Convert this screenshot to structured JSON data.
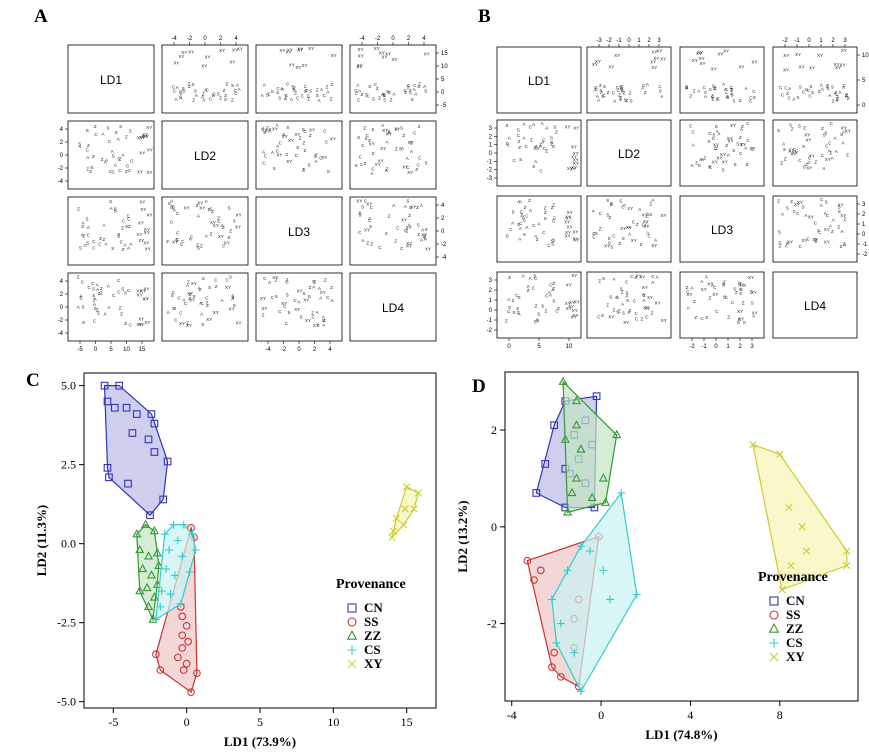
{
  "figure": {
    "panel_letters": [
      "A",
      "B",
      "C",
      "D"
    ]
  },
  "chart_data": [
    {
      "panel": "A",
      "type": "scatter",
      "subtype": "pairs-matrix",
      "variables": [
        "LD1",
        "LD2",
        "LD3",
        "LD4"
      ],
      "axis_ticks": {
        "LD1": [
          "-5",
          "0",
          "5",
          "10",
          "15"
        ],
        "LD2": [
          "-4",
          "-2",
          "0",
          "2",
          "4"
        ],
        "LD3": [
          "-4",
          "-2",
          "0",
          "2",
          "4"
        ],
        "LD4": [
          "-4",
          "-2",
          "0",
          "2",
          "4"
        ]
      },
      "axis_ranges": {
        "LD1": [
          -6.5,
          16.5
        ],
        "LD2": [
          -5,
          5.2
        ],
        "LD3": [
          -5,
          5
        ],
        "LD4": [
          -5,
          5
        ]
      },
      "point_symbols": [
        "C",
        "S",
        "Z",
        "A",
        "XY"
      ],
      "grid": false
    },
    {
      "panel": "B",
      "type": "scatter",
      "subtype": "pairs-matrix",
      "variables": [
        "LD1",
        "LD2",
        "LD3",
        "LD4"
      ],
      "axis_ticks": {
        "LD1": [
          "0",
          "5",
          "10"
        ],
        "LD2": [
          "-3",
          "-2",
          "-1",
          "0",
          "1",
          "2",
          "3"
        ],
        "LD3": [
          "-2",
          "-1",
          "0",
          "1",
          "2",
          "3"
        ],
        "LD4": [
          "-2",
          "-1",
          "0",
          "1",
          "2",
          "3"
        ]
      },
      "axis_ranges": {
        "LD1": [
          -3.5,
          11.5
        ],
        "LD2": [
          -3.5,
          3.5
        ],
        "LD3": [
          -3,
          3.5
        ],
        "LD4": [
          -2.5,
          3.5
        ]
      },
      "point_symbols": [
        "C",
        "S",
        "Z",
        "A",
        "XY"
      ],
      "grid": false
    },
    {
      "panel": "C",
      "type": "scatter",
      "xlabel": "LD1 (73.9%)",
      "ylabel": "LD2 (11.3%)",
      "xlim": [
        -7,
        17
      ],
      "ylim": [
        -5.2,
        5.4
      ],
      "x_ticks": [
        "-5",
        "0",
        "5",
        "10",
        "15"
      ],
      "y_ticks": [
        "-5.0",
        "-2.5",
        "0.0",
        "2.5",
        "5.0"
      ],
      "legend": {
        "title": "Provenance",
        "position": "bottom-right"
      },
      "grid": false,
      "series": [
        {
          "name": "CN",
          "marker": "square",
          "color": "#3333bb",
          "fill": "#b9b9e6",
          "points": [
            [
              -5.6,
              5.0
            ],
            [
              -4.6,
              5.0
            ],
            [
              -5.4,
              4.5
            ],
            [
              -4.9,
              4.3
            ],
            [
              -4.1,
              4.3
            ],
            [
              -3.4,
              4.1
            ],
            [
              -2.4,
              4.1
            ],
            [
              -2.2,
              3.8
            ],
            [
              -3.7,
              3.5
            ],
            [
              -2.6,
              3.3
            ],
            [
              -2.2,
              2.9
            ],
            [
              -1.3,
              2.6
            ],
            [
              -1.6,
              1.4
            ],
            [
              -5.4,
              2.4
            ],
            [
              -5.3,
              2.1
            ],
            [
              -4.0,
              1.9
            ],
            [
              -2.5,
              0.9
            ]
          ]
        },
        {
          "name": "SS",
          "marker": "circle",
          "color": "#cc3333",
          "fill": "#eec4c4",
          "points": [
            [
              0.3,
              0.5
            ],
            [
              -0.4,
              -2.0
            ],
            [
              -0.3,
              -2.3
            ],
            [
              0.0,
              -2.6
            ],
            [
              -0.3,
              -2.9
            ],
            [
              0.1,
              -3.1
            ],
            [
              -0.3,
              -3.3
            ],
            [
              -0.6,
              -3.6
            ],
            [
              0.0,
              -3.8
            ],
            [
              -0.2,
              -4.0
            ],
            [
              -1.8,
              -4.0
            ],
            [
              -2.1,
              -3.5
            ],
            [
              0.7,
              -4.1
            ],
            [
              0.3,
              -4.7
            ],
            [
              0.5,
              0.2
            ]
          ]
        },
        {
          "name": "ZZ",
          "marker": "triangle",
          "color": "#339933",
          "fill": "#c3e5c3",
          "points": [
            [
              -3.4,
              0.3
            ],
            [
              -2.8,
              0.6
            ],
            [
              -2.2,
              0.4
            ],
            [
              -3.2,
              -0.2
            ],
            [
              -2.6,
              -0.4
            ],
            [
              -2.0,
              -0.3
            ],
            [
              -3.0,
              -0.8
            ],
            [
              -2.4,
              -1.0
            ],
            [
              -1.9,
              -0.7
            ],
            [
              -3.2,
              -1.5
            ],
            [
              -2.7,
              -1.4
            ],
            [
              -2.2,
              -1.7
            ],
            [
              -2.6,
              -2.0
            ],
            [
              -2.3,
              -2.4
            ],
            [
              -2.0,
              -1.3
            ]
          ]
        },
        {
          "name": "CS",
          "marker": "plus",
          "color": "#33cccc",
          "fill": "#c8f2f2",
          "points": [
            [
              -0.9,
              0.6
            ],
            [
              -0.2,
              0.6
            ],
            [
              0.4,
              0.3
            ],
            [
              -1.5,
              0.3
            ],
            [
              -0.6,
              0.1
            ],
            [
              -1.2,
              -0.2
            ],
            [
              -0.3,
              -0.4
            ],
            [
              0.6,
              -0.2
            ],
            [
              -1.4,
              -0.8
            ],
            [
              -0.8,
              -1.0
            ],
            [
              0.2,
              -0.9
            ],
            [
              -1.7,
              -1.5
            ],
            [
              -1.1,
              -1.6
            ],
            [
              -0.4,
              -1.9
            ],
            [
              -2.1,
              -2.4
            ],
            [
              -1.8,
              -2.0
            ]
          ]
        },
        {
          "name": "XY",
          "marker": "cross",
          "color": "#cccc33",
          "fill": "#f5f5b4",
          "points": [
            [
              14.0,
              0.2
            ],
            [
              14.3,
              0.8
            ],
            [
              15.0,
              1.8
            ],
            [
              15.8,
              1.6
            ],
            [
              15.5,
              1.1
            ],
            [
              14.8,
              0.6
            ],
            [
              14.9,
              1.1
            ],
            [
              14.1,
              0.4
            ]
          ]
        }
      ]
    },
    {
      "panel": "D",
      "type": "scatter",
      "xlabel": "LD1 (74.8%)",
      "ylabel": "LD2 (13.2%)",
      "xlim": [
        -4.3,
        11.5
      ],
      "ylim": [
        -3.6,
        3.2
      ],
      "x_ticks": [
        "-4",
        "0",
        "4",
        "8"
      ],
      "y_ticks": [
        "-2",
        "0",
        "2"
      ],
      "legend": {
        "title": "Provenance",
        "position": "bottom-right"
      },
      "grid": false,
      "series": [
        {
          "name": "CN",
          "marker": "square",
          "color": "#3333bb",
          "fill": "#b9b9e6",
          "points": [
            [
              -0.2,
              2.7
            ],
            [
              -1.6,
              2.6
            ],
            [
              -0.7,
              2.2
            ],
            [
              -2.1,
              2.1
            ],
            [
              -1.2,
              1.9
            ],
            [
              -0.4,
              1.7
            ],
            [
              -2.5,
              1.3
            ],
            [
              -1.6,
              1.2
            ],
            [
              -1.0,
              1.4
            ],
            [
              -2.9,
              0.7
            ],
            [
              -1.6,
              0.4
            ],
            [
              -0.7,
              0.9
            ],
            [
              -0.3,
              0.4
            ],
            [
              -1.4,
              1.1
            ]
          ]
        },
        {
          "name": "SS",
          "marker": "circle",
          "color": "#cc3333",
          "fill": "#eec4c4",
          "points": [
            [
              -3.3,
              -0.7
            ],
            [
              -2.7,
              -0.9
            ],
            [
              -3.0,
              -1.1
            ],
            [
              -1.0,
              -1.5
            ],
            [
              -1.2,
              -1.9
            ],
            [
              -2.1,
              -2.6
            ],
            [
              -1.2,
              -2.5
            ],
            [
              -1.8,
              -3.1
            ],
            [
              -1.0,
              -3.3
            ],
            [
              -2.2,
              -2.9
            ],
            [
              -0.1,
              -0.2
            ]
          ]
        },
        {
          "name": "ZZ",
          "marker": "triangle",
          "color": "#339933",
          "fill": "#c3e5c3",
          "points": [
            [
              -1.7,
              3.0
            ],
            [
              -1.1,
              2.6
            ],
            [
              0.7,
              1.9
            ],
            [
              -1.6,
              1.8
            ],
            [
              -0.9,
              1.6
            ],
            [
              -1.1,
              1.0
            ],
            [
              0.1,
              1.0
            ],
            [
              -1.3,
              0.7
            ],
            [
              -0.4,
              0.6
            ],
            [
              -1.5,
              0.3
            ],
            [
              0.2,
              0.5
            ],
            [
              -1.1,
              2.1
            ]
          ]
        },
        {
          "name": "CS",
          "marker": "plus",
          "color": "#33cccc",
          "fill": "#c8f2f2",
          "points": [
            [
              0.9,
              0.7
            ],
            [
              1.6,
              -1.4
            ],
            [
              0.4,
              -1.5
            ],
            [
              -0.9,
              -0.4
            ],
            [
              -1.5,
              -0.9
            ],
            [
              -2.2,
              -1.5
            ],
            [
              -1.8,
              -2.0
            ],
            [
              -2.0,
              -2.4
            ],
            [
              -1.2,
              -2.6
            ],
            [
              -0.9,
              -3.4
            ],
            [
              0.1,
              -0.9
            ],
            [
              -0.5,
              -0.5
            ]
          ]
        },
        {
          "name": "XY",
          "marker": "cross",
          "color": "#cccc33",
          "fill": "#f5f5b4",
          "points": [
            [
              6.8,
              1.7
            ],
            [
              8.0,
              1.5
            ],
            [
              8.4,
              0.4
            ],
            [
              9.0,
              0.0
            ],
            [
              9.2,
              -0.5
            ],
            [
              11.0,
              -0.5
            ],
            [
              11.0,
              -0.8
            ],
            [
              8.5,
              -0.8
            ],
            [
              8.1,
              -1.3
            ]
          ]
        }
      ]
    }
  ]
}
